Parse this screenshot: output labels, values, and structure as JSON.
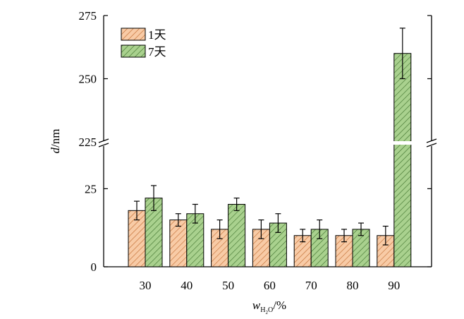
{
  "chart_data": {
    "type": "bar",
    "categories": [
      "30",
      "40",
      "50",
      "60",
      "70",
      "80",
      "90"
    ],
    "series": [
      {
        "name": "1天",
        "values": [
          18,
          15,
          12,
          12,
          10,
          10,
          10
        ],
        "errors": [
          3,
          2,
          3,
          3,
          2,
          2,
          3
        ],
        "color": "#f8cba6",
        "hatch_color": "#c06a2e"
      },
      {
        "name": "7天",
        "values": [
          22,
          17,
          20,
          14,
          12,
          12,
          260
        ],
        "errors": [
          4,
          3,
          2,
          3,
          3,
          2,
          10
        ],
        "color": "#a9d18e",
        "hatch_color": "#3c6f2a"
      }
    ],
    "ylabel_var": "d",
    "ylabel_unit": "/nm",
    "xlabel_var": "w",
    "xlabel_subscript_1": "H",
    "xlabel_subscript_2": "2",
    "xlabel_subscript_3": "O",
    "xlabel_unit": "/%",
    "yaxis_break": true,
    "lower_range": [
      0,
      40
    ],
    "upper_range": [
      225,
      275
    ],
    "lower_ticks": [
      "0",
      "25"
    ],
    "upper_ticks": [
      "225",
      "250",
      "275"
    ],
    "legend_position": "top-left",
    "grid": false
  }
}
